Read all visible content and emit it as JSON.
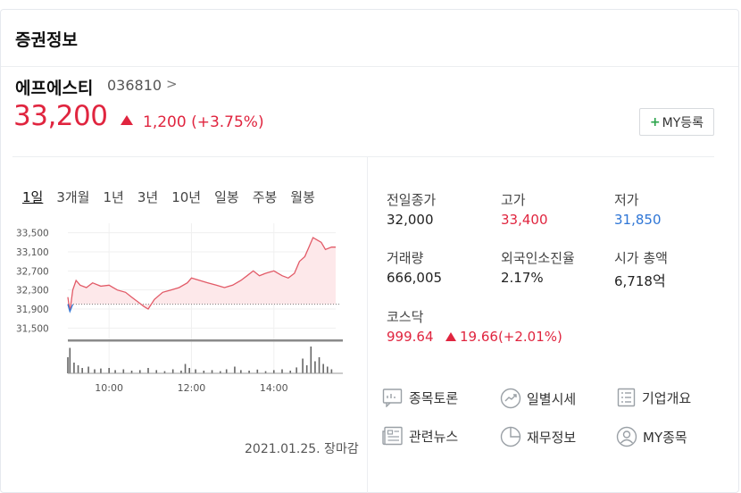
{
  "header": {
    "title": "증권정보"
  },
  "stock": {
    "name": "에프에스티",
    "code": "036810",
    "code_chevron": ">",
    "price": "33,200",
    "change": "1,200",
    "change_pct": "(+3.75%)",
    "my_button": "MY등록",
    "my_button_plus": "+"
  },
  "tabs": [
    {
      "label": "1일",
      "active": true
    },
    {
      "label": "3개월"
    },
    {
      "label": "1년"
    },
    {
      "label": "3년"
    },
    {
      "label": "10년"
    },
    {
      "label": "일봉"
    },
    {
      "label": "주봉"
    },
    {
      "label": "월봉"
    }
  ],
  "stats": {
    "prev_close_label": "전일종가",
    "prev_close": "32,000",
    "high_label": "고가",
    "high": "33,400",
    "low_label": "저가",
    "low": "31,850",
    "volume_label": "거래량",
    "volume": "666,005",
    "foreign_label": "외국인소진율",
    "foreign": "2.17%",
    "mcap_label": "시가 총액",
    "mcap": "6,718",
    "mcap_unit": "억"
  },
  "kospi": {
    "label": "코스닥",
    "value": "999.64",
    "change": "19.66",
    "change_pct": "(+2.01%)"
  },
  "links": [
    {
      "label": "종목토론",
      "icon": "discussion-icon"
    },
    {
      "label": "일별시세",
      "icon": "trend-icon"
    },
    {
      "label": "기업개요",
      "icon": "company-icon"
    },
    {
      "label": "관련뉴스",
      "icon": "news-icon"
    },
    {
      "label": "재무정보",
      "icon": "pie-icon"
    },
    {
      "label": "MY종목",
      "icon": "user-icon"
    }
  ],
  "footer": {
    "date": "2021.01.25. 장마감"
  },
  "colors": {
    "up": "#e0253f",
    "down": "#2f76d6",
    "line": "#e25a67",
    "fill": "#fde8ea"
  },
  "chart_data": {
    "type": "line",
    "ylim": [
      31300,
      33700
    ],
    "y_ticks": [
      "33,500",
      "33,100",
      "32,700",
      "32,300",
      "31,900",
      "31,500"
    ],
    "y_tick_values": [
      33500,
      33100,
      32700,
      32300,
      31900,
      31500
    ],
    "x_ticks": [
      "10:00",
      "12:00",
      "14:00"
    ],
    "x_tick_hours": [
      10,
      12,
      14
    ],
    "x_range_hours": [
      9.0,
      15.5
    ],
    "prev_close": 32000,
    "price_points": [
      [
        9.0,
        32150
      ],
      [
        9.05,
        31850
      ],
      [
        9.12,
        32300
      ],
      [
        9.2,
        32500
      ],
      [
        9.3,
        32400
      ],
      [
        9.45,
        32350
      ],
      [
        9.6,
        32450
      ],
      [
        9.8,
        32380
      ],
      [
        10.0,
        32400
      ],
      [
        10.2,
        32300
      ],
      [
        10.4,
        32250
      ],
      [
        10.55,
        32150
      ],
      [
        10.7,
        32050
      ],
      [
        10.85,
        31950
      ],
      [
        10.95,
        31900
      ],
      [
        11.1,
        32100
      ],
      [
        11.3,
        32250
      ],
      [
        11.5,
        32300
      ],
      [
        11.7,
        32350
      ],
      [
        11.9,
        32450
      ],
      [
        12.0,
        32550
      ],
      [
        12.2,
        32500
      ],
      [
        12.4,
        32450
      ],
      [
        12.6,
        32400
      ],
      [
        12.8,
        32350
      ],
      [
        13.0,
        32400
      ],
      [
        13.2,
        32500
      ],
      [
        13.35,
        32600
      ],
      [
        13.5,
        32700
      ],
      [
        13.65,
        32600
      ],
      [
        13.8,
        32650
      ],
      [
        14.0,
        32700
      ],
      [
        14.2,
        32600
      ],
      [
        14.35,
        32550
      ],
      [
        14.5,
        32650
      ],
      [
        14.62,
        32900
      ],
      [
        14.75,
        33000
      ],
      [
        14.85,
        33200
      ],
      [
        14.95,
        33400
      ],
      [
        15.05,
        33350
      ],
      [
        15.15,
        33300
      ],
      [
        15.25,
        33150
      ],
      [
        15.4,
        33200
      ],
      [
        15.5,
        33200
      ]
    ],
    "volume_points": [
      [
        9.0,
        60
      ],
      [
        9.05,
        95
      ],
      [
        9.15,
        40
      ],
      [
        9.25,
        30
      ],
      [
        9.35,
        20
      ],
      [
        9.5,
        25
      ],
      [
        9.65,
        15
      ],
      [
        9.8,
        18
      ],
      [
        10.0,
        20
      ],
      [
        10.15,
        12
      ],
      [
        10.35,
        15
      ],
      [
        10.55,
        10
      ],
      [
        10.75,
        12
      ],
      [
        10.95,
        20
      ],
      [
        11.15,
        12
      ],
      [
        11.35,
        8
      ],
      [
        11.55,
        15
      ],
      [
        11.75,
        10
      ],
      [
        11.85,
        35
      ],
      [
        11.95,
        20
      ],
      [
        12.1,
        15
      ],
      [
        12.3,
        10
      ],
      [
        12.5,
        12
      ],
      [
        12.7,
        8
      ],
      [
        12.85,
        15
      ],
      [
        13.05,
        25
      ],
      [
        13.2,
        12
      ],
      [
        13.4,
        10
      ],
      [
        13.6,
        14
      ],
      [
        13.8,
        8
      ],
      [
        14.0,
        12
      ],
      [
        14.2,
        15
      ],
      [
        14.4,
        10
      ],
      [
        14.55,
        22
      ],
      [
        14.7,
        55
      ],
      [
        14.8,
        30
      ],
      [
        14.9,
        100
      ],
      [
        15.0,
        45
      ],
      [
        15.1,
        60
      ],
      [
        15.2,
        35
      ],
      [
        15.3,
        25
      ],
      [
        15.4,
        15
      ]
    ]
  }
}
